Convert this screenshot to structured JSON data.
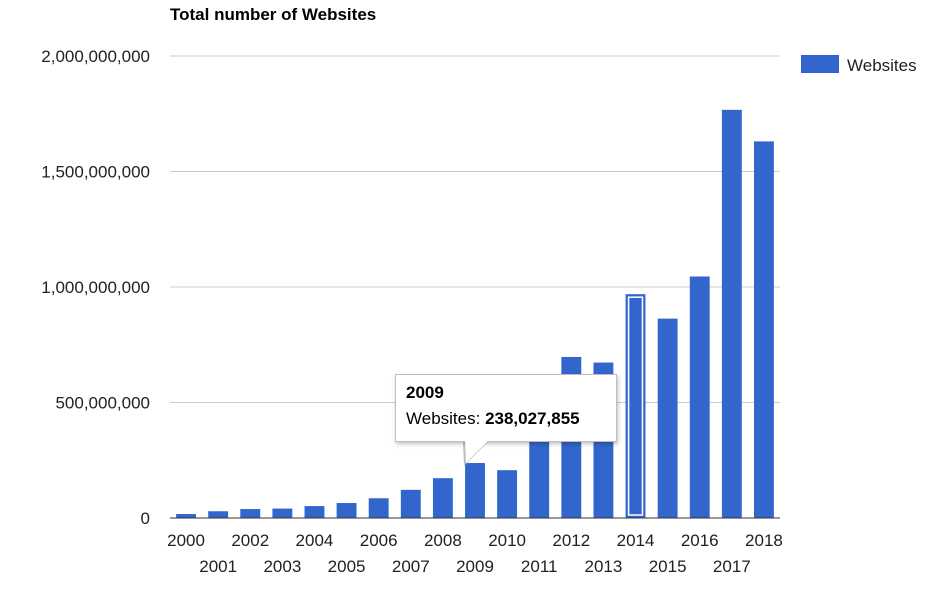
{
  "chart_data": {
    "type": "bar",
    "title": "Total number of Websites",
    "xlabel": "",
    "ylabel": "",
    "ylim": [
      0,
      2000000000
    ],
    "yticks": [
      0,
      500000000,
      1000000000,
      1500000000,
      2000000000
    ],
    "ytick_labels": [
      "0",
      "500,000,000",
      "1,000,000,000",
      "1,500,000,000",
      "2,000,000,000"
    ],
    "categories": [
      "2000",
      "2001",
      "2002",
      "2003",
      "2004",
      "2005",
      "2006",
      "2007",
      "2008",
      "2009",
      "2010",
      "2011",
      "2012",
      "2013",
      "2014",
      "2015",
      "2016",
      "2017",
      "2018"
    ],
    "series": [
      {
        "name": "Websites",
        "color": "#3366cc",
        "values": [
          17087182,
          29254370,
          38760373,
          40912332,
          51611646,
          64780617,
          85507314,
          121892559,
          172338726,
          238027855,
          206956723,
          346004403,
          697089489,
          672985183,
          968882453,
          863105652,
          1045534808,
          1766926408,
          1630322579
        ]
      }
    ],
    "legend": "right",
    "grid": true,
    "highlighted_category": "2014",
    "tooltip": {
      "category": "2009",
      "label": "Websites:",
      "value": "238,027,855"
    }
  }
}
